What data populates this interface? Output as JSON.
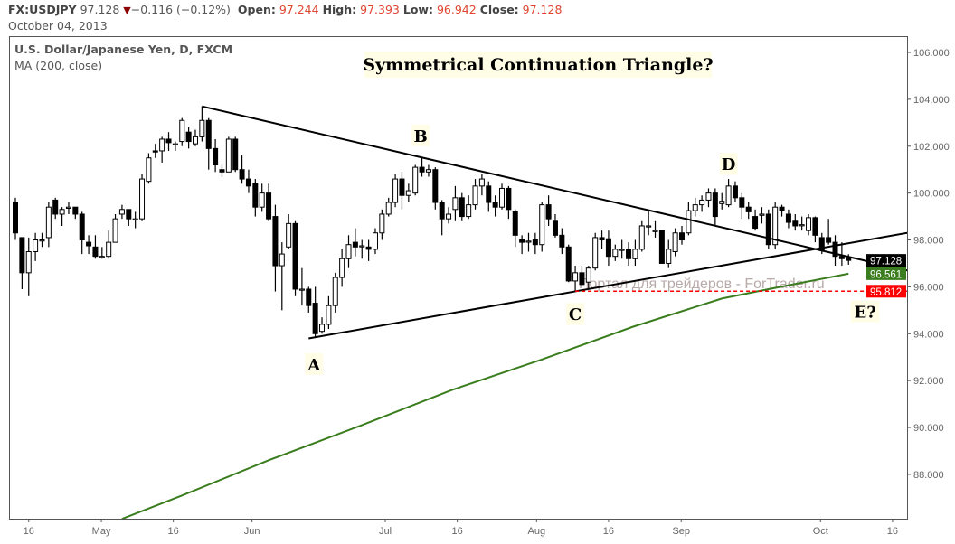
{
  "header": {
    "symbol": "FX:USDJPY",
    "last": "97.128",
    "direction_icon": "down-triangle",
    "change": "−0.116 (−0.12%)",
    "open_label": "Open:",
    "open": "97.244",
    "high_label": "High:",
    "high": "97.393",
    "low_label": "Low:",
    "low": "96.942",
    "close_label": "Close:",
    "close": "97.128",
    "date": "October 04, 2013"
  },
  "colors": {
    "up_body": "#ffffff",
    "down_body": "#000000",
    "ma": "#3a7d1e",
    "support": "#ff0000",
    "label_bg": "#fffde6",
    "last_tag": "#000000",
    "ma_tag": "#3a7d1e",
    "support_tag": "#ff0000"
  },
  "chart_data": {
    "type": "candlestick",
    "title": "Symmetrical Continuation Triangle?",
    "legend": {
      "series": "U.S. Dollar/Japanese Yen, D, FXCM",
      "indicator": "MA (200, close)",
      "placement": "top-left"
    },
    "ylim": [
      86.0,
      106.6
    ],
    "y_ticks": [
      "106.000",
      "104.000",
      "102.000",
      "100.000",
      "98.000",
      "96.000",
      "94.000",
      "92.000",
      "90.000",
      "88.000"
    ],
    "x_ticks": [
      [
        "16",
        2.0
      ],
      [
        "May",
        12.9
      ],
      [
        "16",
        23.7
      ],
      [
        "Jun",
        35.5
      ],
      [
        "Jul",
        55.5
      ],
      [
        "16",
        66.3
      ],
      [
        "Aug",
        78.2
      ],
      [
        "16",
        89.0
      ],
      [
        "Sep",
        99.9
      ],
      [
        "Oct",
        120.8
      ],
      [
        "16",
        131.6
      ]
    ],
    "candles": [
      [
        99.6,
        99.8,
        98.0,
        98.3
      ],
      [
        98.1,
        98.1,
        95.9,
        96.6
      ],
      [
        96.6,
        98.1,
        95.6,
        97.5
      ],
      [
        97.5,
        98.3,
        97.1,
        98.0
      ],
      [
        98.0,
        98.3,
        97.7,
        98.0
      ],
      [
        98.1,
        99.6,
        97.7,
        99.4
      ],
      [
        99.7,
        99.8,
        98.9,
        99.1
      ],
      [
        99.1,
        99.4,
        98.6,
        99.3
      ],
      [
        99.35,
        99.6,
        99.1,
        99.4
      ],
      [
        99.4,
        99.4,
        98.9,
        99.1
      ],
      [
        99.1,
        99.2,
        97.4,
        98.0
      ],
      [
        97.9,
        98.2,
        97.4,
        97.75
      ],
      [
        97.7,
        98.2,
        97.2,
        97.3
      ],
      [
        97.3,
        97.7,
        97.2,
        97.3
      ],
      [
        97.3,
        98.4,
        97.2,
        97.9
      ],
      [
        97.9,
        99.1,
        97.9,
        98.9
      ],
      [
        99.1,
        99.5,
        98.9,
        99.3
      ],
      [
        99.3,
        99.3,
        98.6,
        98.9
      ],
      [
        98.9,
        99.2,
        98.5,
        98.9
      ],
      [
        98.9,
        100.8,
        98.8,
        100.6
      ],
      [
        100.5,
        101.7,
        100.4,
        101.5
      ],
      [
        101.8,
        102.1,
        101.5,
        101.75
      ],
      [
        101.8,
        102.4,
        101.3,
        102.3
      ],
      [
        102.3,
        102.6,
        101.8,
        102.15
      ],
      [
        102.1,
        102.2,
        101.8,
        102.1
      ],
      [
        102.2,
        103.2,
        102.0,
        103.1
      ],
      [
        102.6,
        102.8,
        101.9,
        102.2
      ],
      [
        102.1,
        102.7,
        102.0,
        102.4
      ],
      [
        102.4,
        103.7,
        102.2,
        103.1
      ],
      [
        103.1,
        103.2,
        101.0,
        101.9
      ],
      [
        101.9,
        102.3,
        100.9,
        101.2
      ],
      [
        101.0,
        101.2,
        100.7,
        100.9
      ],
      [
        100.9,
        102.4,
        100.9,
        102.3
      ],
      [
        102.3,
        102.4,
        100.9,
        101.0
      ],
      [
        101.0,
        101.6,
        100.4,
        100.6
      ],
      [
        100.6,
        101.0,
        100.0,
        100.3
      ],
      [
        100.4,
        100.6,
        99.0,
        99.4
      ],
      [
        99.4,
        100.4,
        99.2,
        100.0
      ],
      [
        100.0,
        100.4,
        98.8,
        98.9
      ],
      [
        99.0,
        99.5,
        95.8,
        96.9
      ],
      [
        96.9,
        97.9,
        95.0,
        97.4
      ],
      [
        97.7,
        99.1,
        97.6,
        98.7
      ],
      [
        98.7,
        98.8,
        95.6,
        95.9
      ],
      [
        95.9,
        96.8,
        95.2,
        95.9
      ],
      [
        95.9,
        96.0,
        94.9,
        95.2
      ],
      [
        95.3,
        96.0,
        93.85,
        94.0
      ],
      [
        94.1,
        94.7,
        94.0,
        94.4
      ],
      [
        94.4,
        95.6,
        94.2,
        95.2
      ],
      [
        95.2,
        96.6,
        94.9,
        96.4
      ],
      [
        96.4,
        97.6,
        96.0,
        97.2
      ],
      [
        97.2,
        98.2,
        96.8,
        97.8
      ],
      [
        97.9,
        98.5,
        97.3,
        97.7
      ],
      [
        97.75,
        98.0,
        97.2,
        97.75
      ],
      [
        97.7,
        98.0,
        97.1,
        97.6
      ],
      [
        97.6,
        98.5,
        97.4,
        98.3
      ],
      [
        98.3,
        99.3,
        98.0,
        99.1
      ],
      [
        99.1,
        99.8,
        99.0,
        99.6
      ],
      [
        99.6,
        100.8,
        99.4,
        100.6
      ],
      [
        100.6,
        100.9,
        99.3,
        99.9
      ],
      [
        99.9,
        100.4,
        99.6,
        100.1
      ],
      [
        100.0,
        101.2,
        99.9,
        101.1
      ],
      [
        101.1,
        101.5,
        100.7,
        100.9
      ],
      [
        100.9,
        101.2,
        100.7,
        101.0
      ],
      [
        101.0,
        101.1,
        99.3,
        99.6
      ],
      [
        99.6,
        99.7,
        98.2,
        98.9
      ],
      [
        98.9,
        99.4,
        98.7,
        99.1
      ],
      [
        99.3,
        100.3,
        98.8,
        99.8
      ],
      [
        99.8,
        100.0,
        98.8,
        99.0
      ],
      [
        99.0,
        99.9,
        98.9,
        99.5
      ],
      [
        99.5,
        100.6,
        99.3,
        100.3
      ],
      [
        100.3,
        100.8,
        99.9,
        100.6
      ],
      [
        100.3,
        100.5,
        99.2,
        99.6
      ],
      [
        99.6,
        99.9,
        99.0,
        99.4
      ],
      [
        99.4,
        100.4,
        99.3,
        100.2
      ],
      [
        100.2,
        100.3,
        98.9,
        99.3
      ],
      [
        99.2,
        99.3,
        97.7,
        98.2
      ],
      [
        98.0,
        98.2,
        97.4,
        97.9
      ],
      [
        97.95,
        98.3,
        97.5,
        97.95
      ],
      [
        98.0,
        98.3,
        97.4,
        97.8
      ],
      [
        97.8,
        99.6,
        97.5,
        99.5
      ],
      [
        99.5,
        99.9,
        98.6,
        98.9
      ],
      [
        98.8,
        99.1,
        98.1,
        98.2
      ],
      [
        98.2,
        98.5,
        97.4,
        97.7
      ],
      [
        97.7,
        97.8,
        96.2,
        96.25
      ],
      [
        96.25,
        96.9,
        95.8,
        96.6
      ],
      [
        96.6,
        96.9,
        96.0,
        96.1
      ],
      [
        96.2,
        96.9,
        95.9,
        96.8
      ],
      [
        96.8,
        98.3,
        96.7,
        98.1
      ],
      [
        98.1,
        98.4,
        97.6,
        98.0
      ],
      [
        98.05,
        98.4,
        96.9,
        97.3
      ],
      [
        97.3,
        97.8,
        97.1,
        97.6
      ],
      [
        97.6,
        98.0,
        97.2,
        97.6
      ],
      [
        97.6,
        97.9,
        96.9,
        97.2
      ],
      [
        97.2,
        98.0,
        96.9,
        97.6
      ],
      [
        97.6,
        98.8,
        97.5,
        98.6
      ],
      [
        98.6,
        99.3,
        98.2,
        98.6
      ],
      [
        98.4,
        98.8,
        98.1,
        98.4
      ],
      [
        98.4,
        98.4,
        97.0,
        97.0
      ],
      [
        97.0,
        98.0,
        96.8,
        97.6
      ],
      [
        97.5,
        98.5,
        97.3,
        98.3
      ],
      [
        98.3,
        98.6,
        97.8,
        98.0
      ],
      [
        98.3,
        99.6,
        98.2,
        99.25
      ],
      [
        99.25,
        99.8,
        99.0,
        99.5
      ],
      [
        99.5,
        99.9,
        99.2,
        99.7
      ],
      [
        99.7,
        100.2,
        99.4,
        100.0
      ],
      [
        100.0,
        100.2,
        98.6,
        99.0
      ],
      [
        99.55,
        100.0,
        99.3,
        99.65
      ],
      [
        99.5,
        100.6,
        99.4,
        100.3
      ],
      [
        100.3,
        100.5,
        99.6,
        99.8
      ],
      [
        99.8,
        100.0,
        98.9,
        99.4
      ],
      [
        99.4,
        99.6,
        98.9,
        99.2
      ],
      [
        99.0,
        99.3,
        98.4,
        98.5
      ],
      [
        99.05,
        99.4,
        98.7,
        99.1
      ],
      [
        99.1,
        99.3,
        97.6,
        97.8
      ],
      [
        97.8,
        99.6,
        97.6,
        99.4
      ],
      [
        99.4,
        99.5,
        99.0,
        99.25
      ],
      [
        99.1,
        99.3,
        98.5,
        98.75
      ],
      [
        98.8,
        99.1,
        98.4,
        98.6
      ],
      [
        98.65,
        99.0,
        98.4,
        98.65
      ],
      [
        98.4,
        99.1,
        98.2,
        98.95
      ],
      [
        98.95,
        99.0,
        97.9,
        98.2
      ],
      [
        98.1,
        98.3,
        97.4,
        97.55
      ],
      [
        98.1,
        98.9,
        97.8,
        97.9
      ],
      [
        97.9,
        98.2,
        96.9,
        97.3
      ],
      [
        97.3,
        97.9,
        96.9,
        97.2
      ],
      [
        97.244,
        97.393,
        96.942,
        97.128
      ]
    ],
    "ma_200": [
      [
        16,
        86.1
      ],
      [
        25,
        87.1
      ],
      [
        38,
        88.6
      ],
      [
        52,
        90.1
      ],
      [
        65.5,
        91.6
      ],
      [
        79,
        92.9
      ],
      [
        92.7,
        94.3
      ],
      [
        106,
        95.5
      ],
      [
        113,
        95.9
      ],
      [
        125,
        96.561
      ]
    ],
    "trendlines": {
      "upper": [
        [
          28,
          103.7
        ],
        [
          133.8,
          96.7
        ]
      ],
      "lower": [
        [
          44,
          93.8
        ],
        [
          133.8,
          98.3
        ]
      ],
      "support": {
        "from": 84,
        "value": 95.812
      }
    },
    "price_tags": [
      {
        "name": "last-price-tag",
        "value": 97.128,
        "text": "97.128",
        "color": "#000000"
      },
      {
        "name": "ma-price-tag",
        "value": 96.561,
        "text": "96.561",
        "color": "#3a7d1e"
      },
      {
        "name": "support-price-tag",
        "value": 95.812,
        "text": "95.812",
        "color": "#ff0000"
      }
    ],
    "annotations": [
      {
        "text": "A",
        "i": 44.8,
        "price": 92.7
      },
      {
        "text": "B",
        "i": 60.8,
        "price": 102.45
      },
      {
        "text": "C",
        "i": 84,
        "price": 94.85
      },
      {
        "text": "D",
        "i": 107,
        "price": 101.25
      },
      {
        "text": "E?",
        "i": 127.5,
        "price": 94.95
      }
    ],
    "watermark": "Портал для трейдеров - ForTrader.ru"
  }
}
